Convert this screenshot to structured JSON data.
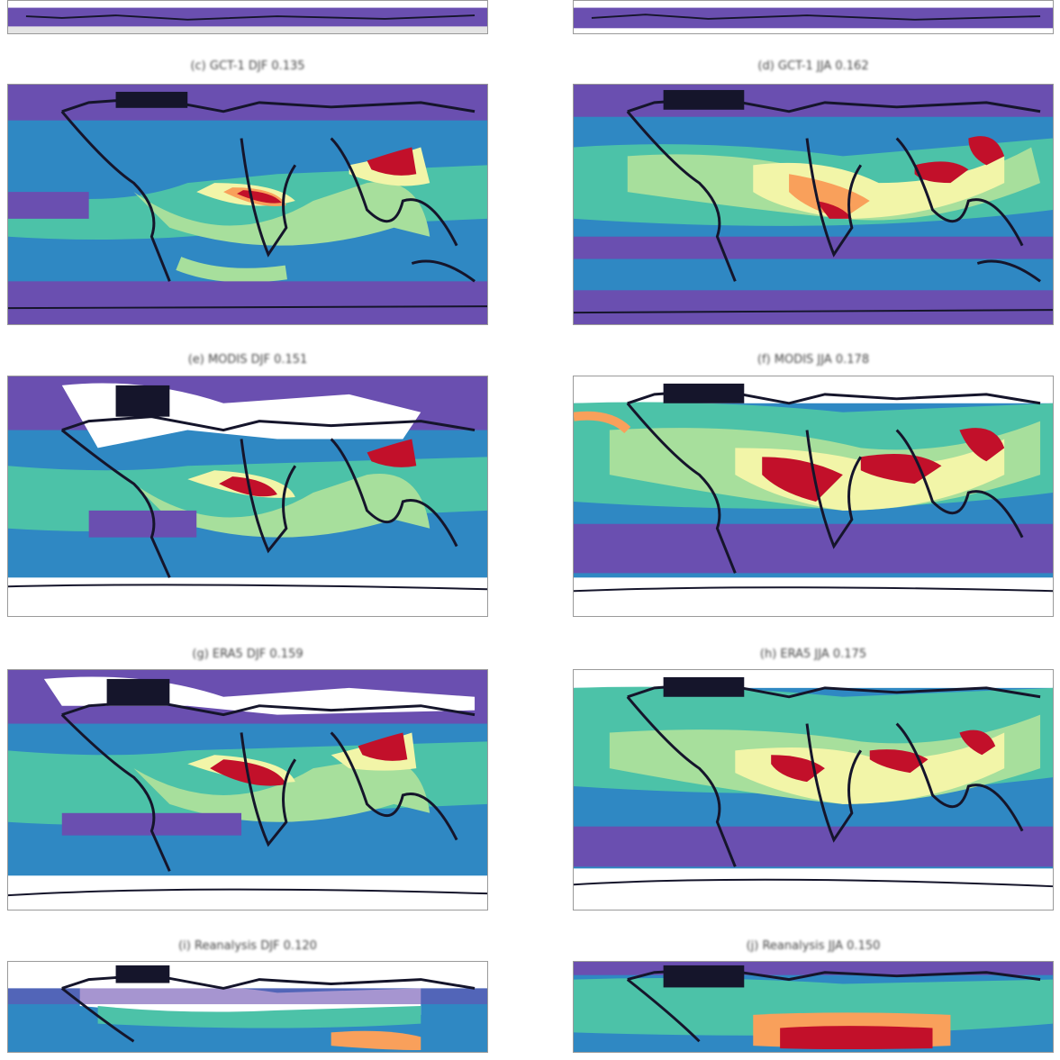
{
  "panels": [
    {
      "id": "top-left-partial",
      "title": ""
    },
    {
      "id": "top-right-partial",
      "title": ""
    },
    {
      "id": "row1-left",
      "title": "(c) GCT-1 DJF 0.135"
    },
    {
      "id": "row1-right",
      "title": "(d) GCT-1 JJA 0.162"
    },
    {
      "id": "row2-left",
      "title": "(e) MODIS DJF 0.151"
    },
    {
      "id": "row2-right",
      "title": "(f) MODIS JJA 0.178"
    },
    {
      "id": "row3-left",
      "title": "(g) ERA5 DJF 0.159"
    },
    {
      "id": "row3-right",
      "title": "(h) ERA5 JJA 0.175"
    },
    {
      "id": "row4-left",
      "title": "(i) Reanalysis DJF 0.120"
    },
    {
      "id": "row4-right",
      "title": "(j) Reanalysis JJA 0.150"
    }
  ],
  "colors": {
    "purple": "#6a4fb0",
    "blue": "#2f88c3",
    "teal": "#4cc2a8",
    "light_green": "#a7df9c",
    "yellow": "#f2f5a8",
    "orange": "#f9a05b",
    "red": "#c2102a",
    "black": "#15152b",
    "white": "#ffffff",
    "frame": "#9a9a9a"
  }
}
